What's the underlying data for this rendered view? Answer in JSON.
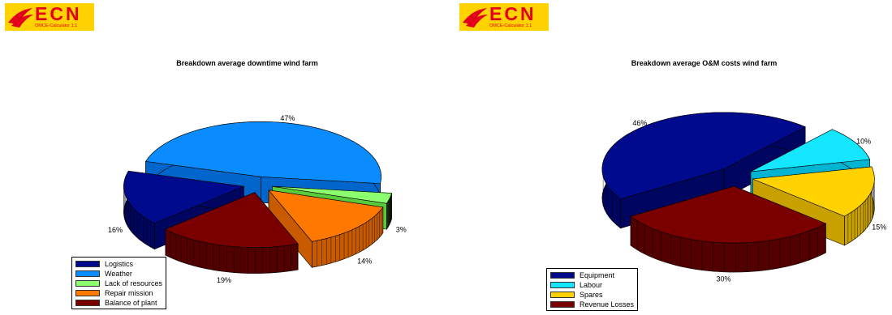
{
  "logo": {
    "text": "ECN",
    "subtitle": "OMCE-Calculator 1.1"
  },
  "colors": {
    "logo_yellow": "#ffd200",
    "logo_red": "#e2001a"
  },
  "chart_data": [
    {
      "type": "pie",
      "style": "3d-exploded",
      "title": "Breakdown average downtime wind farm",
      "legend_position": "bottom-left",
      "slices": [
        {
          "name": "Logistics",
          "value": 16,
          "label": "16%",
          "color": "#000a8c",
          "side": "#000660"
        },
        {
          "name": "Weather",
          "value": 47,
          "label": "47%",
          "color": "#0a8cff",
          "side": "#0066cc"
        },
        {
          "name": "Lack of resources",
          "value": 3,
          "label": "3%",
          "color": "#8cff6e",
          "side": "#5acc3c"
        },
        {
          "name": "Repair mission",
          "value": 14,
          "label": "14%",
          "color": "#ff7800",
          "side": "#c85a00"
        },
        {
          "name": "Balance of plant",
          "value": 19,
          "label": "19%",
          "color": "#7a0000",
          "side": "#520000"
        }
      ]
    },
    {
      "type": "pie",
      "style": "3d-exploded",
      "title": "Breakdown average O&M costs wind farm",
      "legend_position": "bottom-left",
      "slices": [
        {
          "name": "Equipment",
          "value": 46,
          "label": "46%",
          "color": "#000a8c",
          "side": "#000660"
        },
        {
          "name": "Labour",
          "value": 10,
          "label": "10%",
          "color": "#14e6ff",
          "side": "#00b4d2"
        },
        {
          "name": "Spares",
          "value": 15,
          "label": "15%",
          "color": "#ffd200",
          "side": "#c8a000"
        },
        {
          "name": "Revenue Losses",
          "value": 30,
          "label": "30%",
          "color": "#7a0000",
          "side": "#520000"
        }
      ]
    }
  ]
}
